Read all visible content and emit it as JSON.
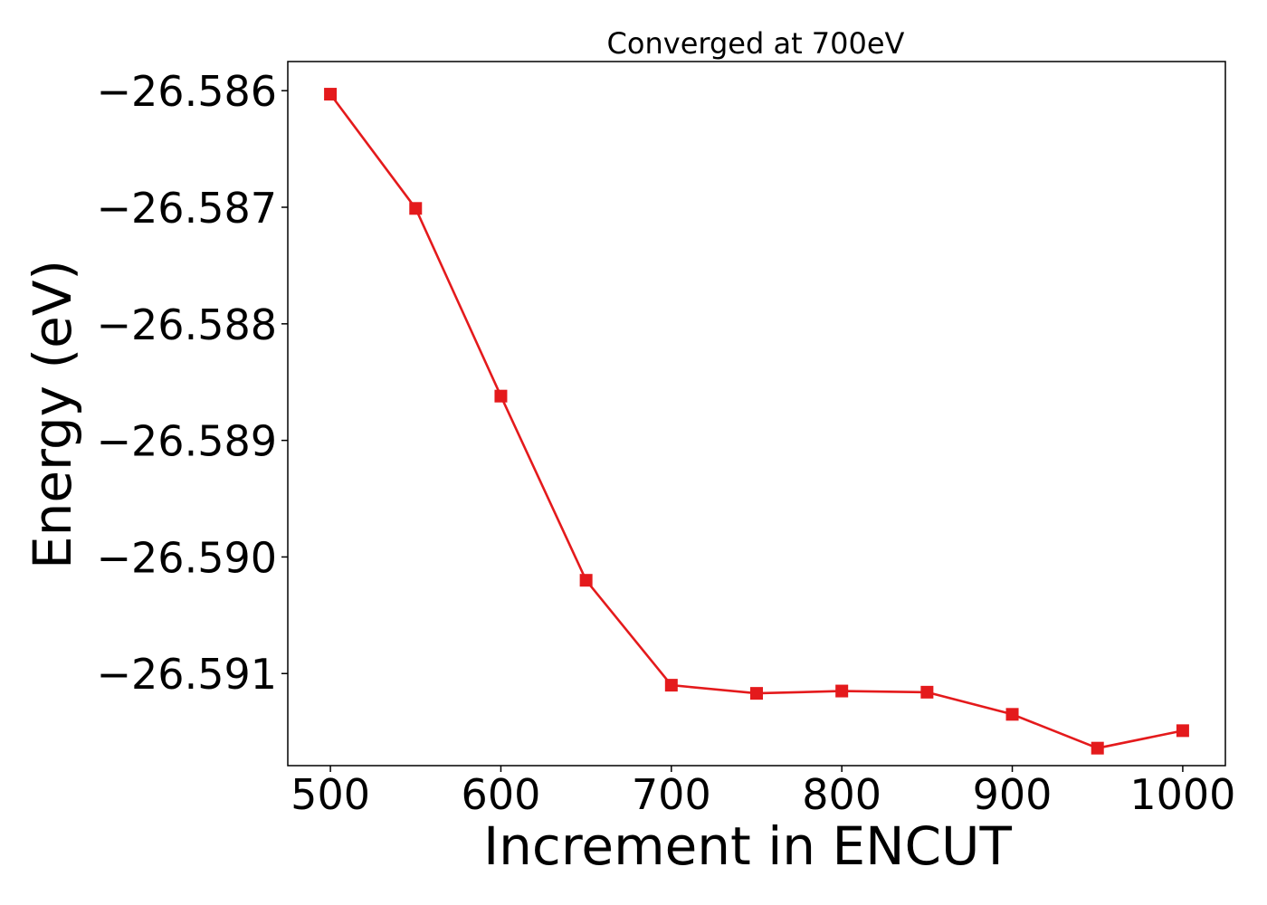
{
  "chart_data": {
    "type": "line",
    "title": "Converged at 700eV",
    "xlabel": "Increment in ENCUT",
    "ylabel": "Energy (eV)",
    "x": [
      500,
      550,
      600,
      650,
      700,
      750,
      800,
      850,
      900,
      950,
      1000
    ],
    "series": [
      {
        "values": [
          -26.58603,
          -26.58701,
          -26.58862,
          -26.5902,
          -26.5911,
          -26.59117,
          -26.59115,
          -26.59116,
          -26.59135,
          -26.59164,
          -26.59149
        ],
        "color": "#e41a1c",
        "marker": "square"
      }
    ],
    "xticks": [
      500,
      600,
      700,
      800,
      900,
      1000
    ],
    "xtick_labels": [
      "500",
      "600",
      "700",
      "800",
      "900",
      "1000"
    ],
    "yticks": [
      -26.586,
      -26.587,
      -26.588,
      -26.589,
      -26.59,
      -26.591
    ],
    "ytick_labels": [
      "−26.586",
      "−26.587",
      "−26.588",
      "−26.589",
      "−26.590",
      "−26.591"
    ],
    "xlim": [
      475,
      1025
    ],
    "ylim": [
      -26.59179,
      -26.58575
    ],
    "grid": false,
    "legend": "none"
  }
}
